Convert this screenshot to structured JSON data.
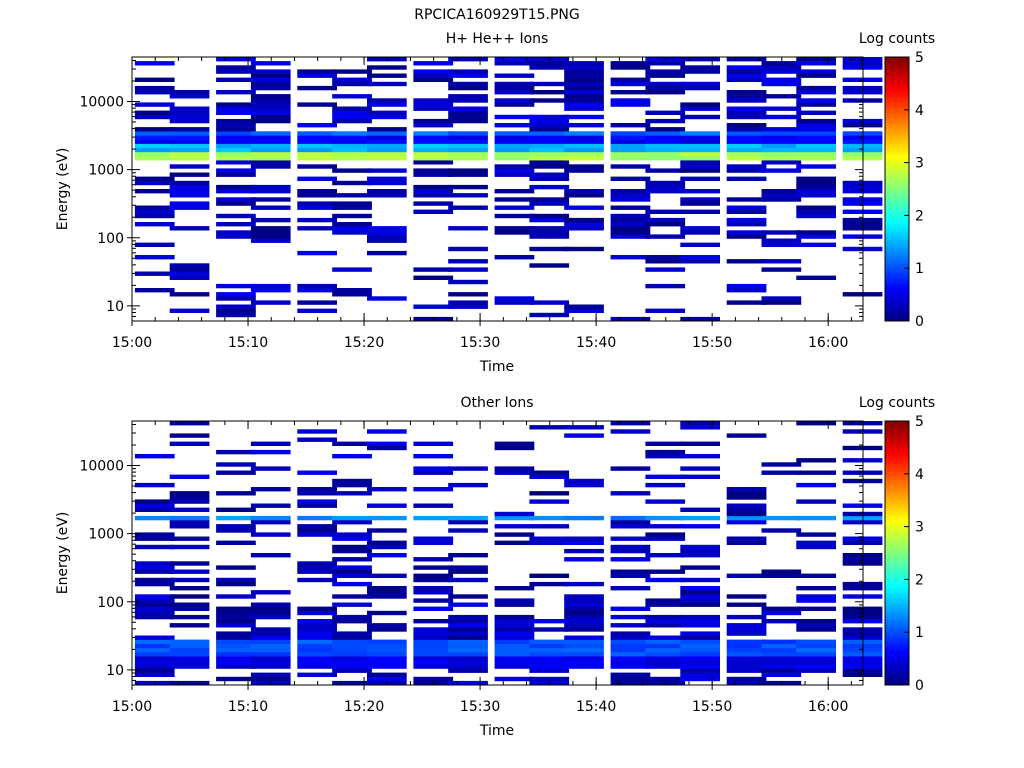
{
  "figure_title": "RPCICA160929T15.PNG",
  "colorbar": {
    "label": "Log counts",
    "ticks": [
      "0",
      "1",
      "2",
      "3",
      "4",
      "5"
    ],
    "range": [
      0,
      5
    ],
    "colormap": "jet"
  },
  "chart_data": [
    {
      "type": "heatmap",
      "title": "H+ He++ Ions",
      "xlabel": "Time",
      "ylabel": "Energy (eV)",
      "y_scale": "log",
      "ylim": [
        6,
        45000
      ],
      "xlim": [
        "15:00",
        "16:03"
      ],
      "x_ticks": [
        "15:00",
        "15:10",
        "15:20",
        "15:30",
        "15:40",
        "15:50",
        "16:00"
      ],
      "y_ticks": [
        "10",
        "100",
        "1000",
        "10000"
      ],
      "time_bins": [
        "15:00",
        "15:03",
        "15:07",
        "15:10",
        "15:14",
        "15:17",
        "15:20",
        "15:24",
        "15:27",
        "15:31",
        "15:34",
        "15:37",
        "15:41",
        "15:44",
        "15:47",
        "15:51",
        "15:54",
        "15:57",
        "16:01"
      ],
      "features": [
        {
          "energy_eV": [
            1400,
            1900
          ],
          "log_counts": 2.7
        },
        {
          "energy_eV": [
            1900,
            2300
          ],
          "log_counts": 1.5
        },
        {
          "energy_eV": [
            2300,
            3000
          ],
          "log_counts": 0.6
        },
        {
          "energy_eV": [
            3000,
            3600
          ],
          "log_counts": 1.1
        }
      ]
    },
    {
      "type": "heatmap",
      "title": "Other Ions",
      "xlabel": "Time",
      "ylabel": "Energy (eV)",
      "y_scale": "log",
      "ylim": [
        6,
        45000
      ],
      "xlim": [
        "15:00",
        "16:03"
      ],
      "x_ticks": [
        "15:00",
        "15:10",
        "15:20",
        "15:30",
        "15:40",
        "15:50",
        "16:00"
      ],
      "y_ticks": [
        "10",
        "100",
        "1000",
        "10000"
      ],
      "time_bins": [
        "15:00",
        "15:03",
        "15:07",
        "15:10",
        "15:14",
        "15:17",
        "15:20",
        "15:24",
        "15:27",
        "15:31",
        "15:34",
        "15:37",
        "15:41",
        "15:44",
        "15:47",
        "15:51",
        "15:54",
        "15:57",
        "16:01"
      ],
      "features": [
        {
          "energy_eV": [
            1500,
            1800
          ],
          "log_counts": 1.3
        },
        {
          "energy_eV": [
            15,
            27
          ],
          "log_counts": 1.0
        },
        {
          "energy_eV": [
            11,
            15
          ],
          "log_counts": 0.5
        }
      ]
    }
  ]
}
